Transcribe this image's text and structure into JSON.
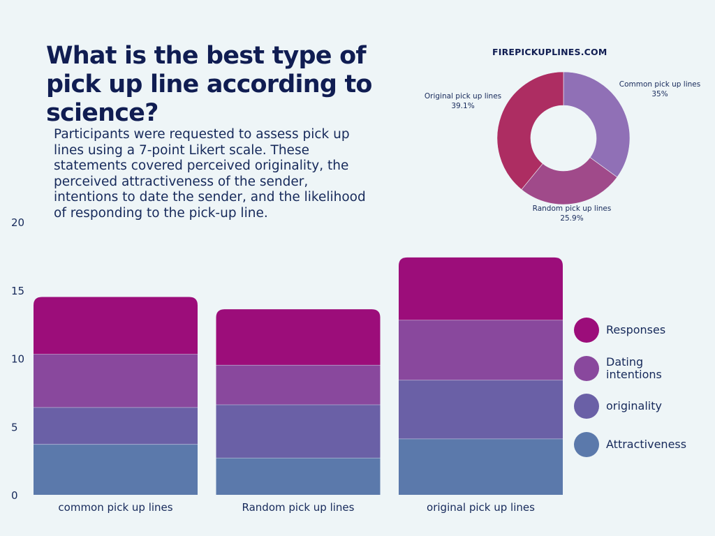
{
  "header": {
    "title": "What is the best type of pick up line according to science?",
    "description": "Participants were requested to assess pick up lines using a 7-point Likert scale. These statements covered perceived originality, the perceived attractiveness of the sender, intentions to date the sender, and the likelihood of responding to the pick-up line.",
    "source": "FIREPICKUPLINES.COM"
  },
  "chart_data": [
    {
      "type": "bar",
      "stacked": true,
      "categories": [
        "common pick up lines",
        "Random pick up lines",
        "original pick up lines"
      ],
      "series": [
        {
          "name": "Attractiveness",
          "values": [
            3.7,
            2.7,
            4.1
          ],
          "color": "#5b79ab"
        },
        {
          "name": "originality",
          "values": [
            2.7,
            3.9,
            4.3
          ],
          "color": "#6a60a6"
        },
        {
          "name": "Dating intentions",
          "values": [
            3.9,
            2.9,
            4.4
          ],
          "color": "#89489d"
        },
        {
          "name": "Responses",
          "values": [
            4.2,
            4.1,
            4.6
          ],
          "color": "#9c0d7a"
        }
      ],
      "yticks": [
        "0",
        "5",
        "10",
        "15",
        "20"
      ],
      "ylim": [
        0,
        20
      ],
      "grid": false,
      "legend_position": "right"
    },
    {
      "type": "pie",
      "donut": true,
      "slices": [
        {
          "label": "Common pick up lines",
          "pct_label": "35%",
          "value": 35,
          "color": "#9070b6"
        },
        {
          "label": "Random pick up lines",
          "pct_label": "25.9%",
          "value": 25.9,
          "color": "#a04a8a"
        },
        {
          "label": "Original pick up lines",
          "pct_label": "39.1%",
          "value": 39.1,
          "color": "#ad2d62"
        }
      ]
    }
  ]
}
